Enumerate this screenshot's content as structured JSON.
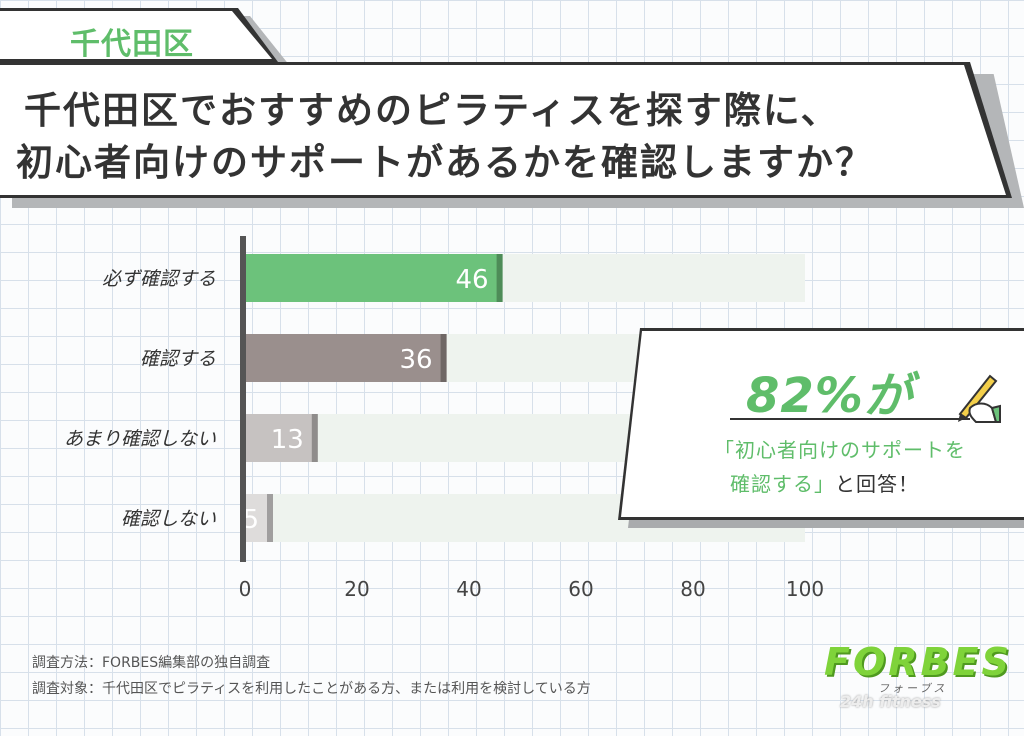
{
  "region": {
    "label": "千代田区"
  },
  "title": {
    "line1": "千代田区でおすすめのピラティスを探す際に、",
    "line2": "初心者向けのサポートがあるかを確認しますか？"
  },
  "chart_data": {
    "type": "bar",
    "orientation": "horizontal",
    "categories": [
      "必ず確認する",
      "確認する",
      "あまり確認しない",
      "確認しない"
    ],
    "values": [
      46,
      36,
      13,
      5
    ],
    "xlim": [
      0,
      100
    ],
    "xticks": [
      0,
      20,
      40,
      60,
      80,
      100
    ],
    "colors": [
      "#6cc27b",
      "#9a8f8d",
      "#c6c2c1",
      "#dedcdb"
    ],
    "track_color": "#eef3ee",
    "grid": false
  },
  "callout": {
    "big": "82%が",
    "line1": "「初心者向けのサポートを",
    "line2_green": "確認する」",
    "line2_rest": "と回答！"
  },
  "notes": {
    "method": "調査方法：FORBES編集部の独自調査",
    "target": "調査対象：千代田区でピラティスを利用したことがある方、または利用を検討している方"
  },
  "logo": {
    "main": "FORBES",
    "kana": "フォーブス",
    "sub": "24h fitness"
  }
}
